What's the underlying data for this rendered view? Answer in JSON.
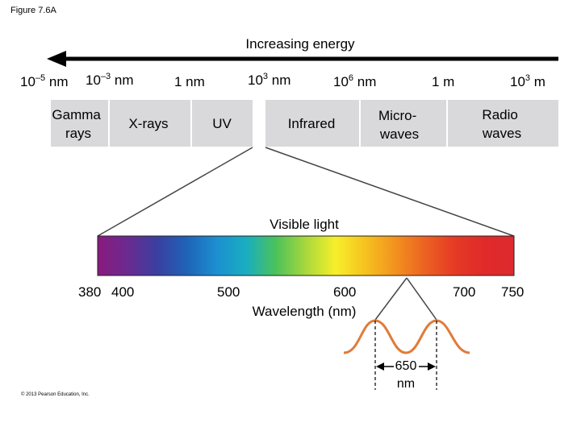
{
  "figure_label": "Figure 7.6A",
  "energy_label": "Increasing energy",
  "scale_ticks": [
    {
      "base": "10",
      "exp": "–5",
      "unit": " nm"
    },
    {
      "base": "10",
      "exp": "–3",
      "unit": " nm"
    },
    {
      "base": "1 nm",
      "exp": "",
      "unit": ""
    },
    {
      "base": "10",
      "exp": "3",
      "unit": " nm"
    },
    {
      "base": "10",
      "exp": "6",
      "unit": " nm"
    },
    {
      "base": "1 m",
      "exp": "",
      "unit": ""
    },
    {
      "base": "10",
      "exp": "3",
      "unit": " m"
    }
  ],
  "regions": [
    {
      "line1": "Gamma",
      "line2": "rays"
    },
    {
      "line1": "X-rays",
      "line2": ""
    },
    {
      "line1": "UV",
      "line2": ""
    },
    {
      "line1": "Infrared",
      "line2": ""
    },
    {
      "line1": "Micro-",
      "line2": "waves"
    },
    {
      "line1": "Radio",
      "line2": "waves"
    }
  ],
  "visible": {
    "label": "Visible light",
    "axis_ticks": [
      "380",
      "400",
      "500",
      "600",
      "700",
      "750"
    ],
    "axis_label": "Wavelength (nm)",
    "gradient_colors": [
      "#8a1a7e",
      "#6b2a8f",
      "#3a3fa0",
      "#1f63b8",
      "#1c8fd0",
      "#19aec0",
      "#4cc25a",
      "#a8d83c",
      "#f7ef2a",
      "#f6c21f",
      "#f2921f",
      "#ec6222",
      "#e53a26",
      "#e02a2a",
      "#dd2a2e"
    ]
  },
  "wave": {
    "color": "#e07b39",
    "value": "650",
    "unit": "nm"
  },
  "copyright": "© 2013 Pearson Education, Inc.",
  "colors": {
    "band_fill": "#d9d9db",
    "band_divider": "#ffffff"
  }
}
